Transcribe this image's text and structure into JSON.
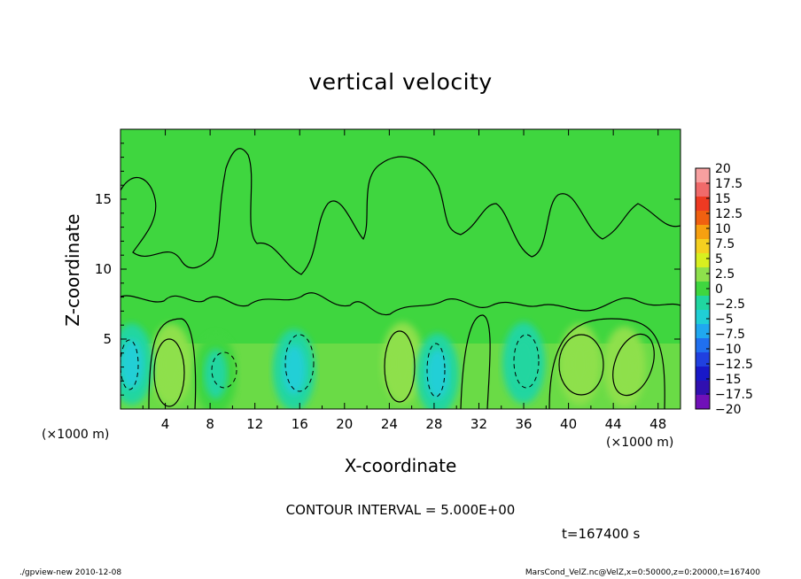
{
  "chart_data": {
    "type": "heatmap",
    "title": "vertical velocity",
    "xlabel": "X-coordinate",
    "ylabel": "Z-coordinate",
    "x_unit_label": "(×1000 m)",
    "x_ticks": [
      "4",
      "8",
      "12",
      "16",
      "20",
      "24",
      "28",
      "32",
      "36",
      "40",
      "44",
      "48"
    ],
    "y_ticks": [
      "5",
      "10",
      "15"
    ],
    "xlim": [
      0,
      50
    ],
    "ylim": [
      0,
      20
    ],
    "colorbar": {
      "labels": [
        "20",
        "17.5",
        "15",
        "12.5",
        "10",
        "7.5",
        "5",
        "2.5",
        "0",
        "−2.5",
        "−5",
        "−7.5",
        "−10",
        "−12.5",
        "−15",
        "−17.5",
        "−20"
      ],
      "colors": [
        "#f7a0a0",
        "#f06a6a",
        "#ee3a22",
        "#f06010",
        "#f7a010",
        "#f5d020",
        "#d8ef20",
        "#8ee04c",
        "#3fd63f",
        "#20d6a0",
        "#20cfd6",
        "#20a8f0",
        "#2070f0",
        "#2040e0",
        "#1818c8",
        "#3010b0",
        "#7010b8"
      ],
      "range": [
        -20,
        20
      ]
    },
    "cells": [
      {
        "x": 4.5,
        "z": 3.2,
        "w": 3.4
      },
      {
        "x": 25.2,
        "z": 3.3,
        "w": 3.3
      },
      {
        "x": 41.0,
        "z": 3.2,
        "w": 3.2
      },
      {
        "x": 45.0,
        "z": 3.0,
        "w": 2.8
      },
      {
        "x": 1.0,
        "z": 3.2,
        "w": -4.2
      },
      {
        "x": 15.5,
        "z": 2.8,
        "w": -4.5
      },
      {
        "x": 28.3,
        "z": 2.5,
        "w": -4.5
      },
      {
        "x": 36.0,
        "z": 3.3,
        "w": -3.2
      },
      {
        "x": 8.5,
        "z": 2.5,
        "w": -2.2
      }
    ],
    "contour_interval": "CONTOUR INTERVAL = 5.000E+00"
  },
  "time_label": "t=167400 s",
  "footer_left": "./gpview-new   2010-12-08",
  "footer_right": "MarsCond_VelZ.nc@VelZ,x=0:50000,z=0:20000,t=167400"
}
